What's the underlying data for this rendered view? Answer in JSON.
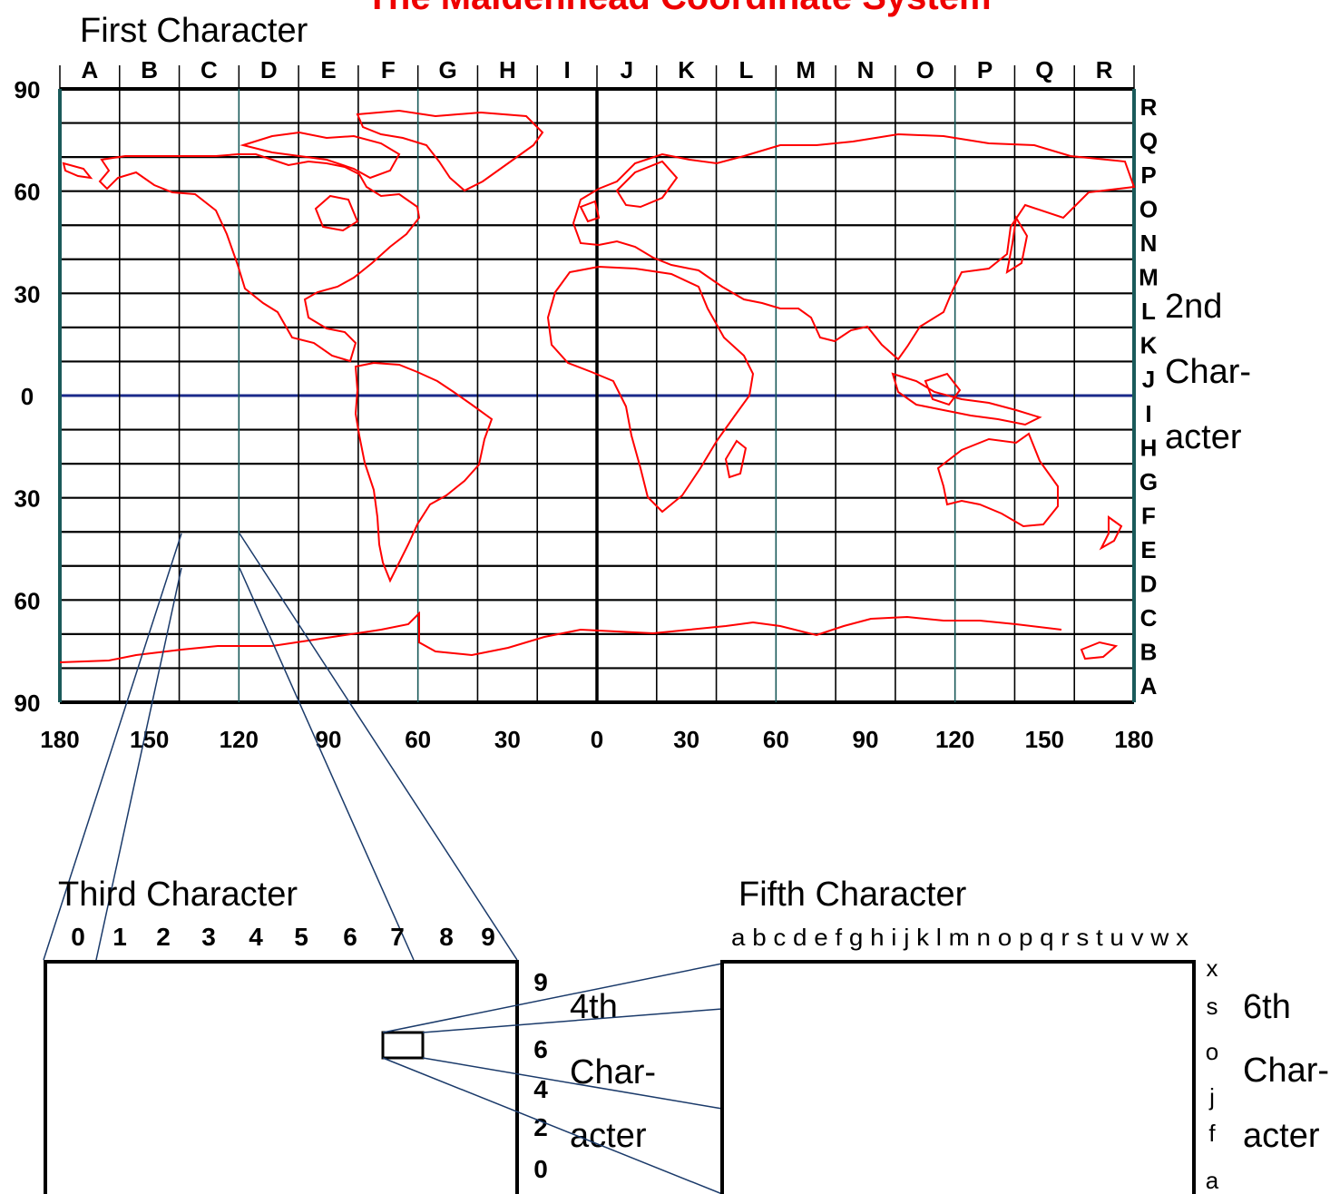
{
  "title": "The Maidenhead Coordinate System",
  "colors": {
    "title": "#ee0000",
    "coast": "#ff0000",
    "grid": "#000000",
    "axis": "#000000",
    "equator": "#1a2a8a",
    "tropic": "#3aa0a0",
    "zoom_line": "#1a3a6a"
  },
  "labels": {
    "first_character": "First Character",
    "second_character": [
      "2nd",
      "Char-",
      "acter"
    ],
    "third_character": "Third Character",
    "fourth_character": [
      "4th",
      "Char-",
      "acter"
    ],
    "fifth_character": "Fifth Character",
    "sixth_character": [
      "6th",
      "Char-",
      "acter"
    ]
  },
  "world_map": {
    "field_letters_lon": [
      "A",
      "B",
      "C",
      "D",
      "E",
      "F",
      "G",
      "H",
      "I",
      "J",
      "K",
      "L",
      "M",
      "N",
      "O",
      "P",
      "Q",
      "R"
    ],
    "field_letters_lat": [
      "R",
      "Q",
      "P",
      "O",
      "N",
      "M",
      "L",
      "K",
      "J",
      "I",
      "H",
      "G",
      "F",
      "E",
      "D",
      "C",
      "B",
      "A"
    ],
    "lat_labels": [
      "90",
      "60",
      "30",
      "0",
      "30",
      "60",
      "90"
    ],
    "lon_labels": [
      "180",
      "150",
      "120",
      "90",
      "60",
      "30",
      "0",
      "30",
      "60",
      "90",
      "120",
      "150",
      "180"
    ]
  },
  "square_box": {
    "digits_lon": [
      "0",
      "1",
      "2",
      "3",
      "4",
      "5",
      "6",
      "7",
      "8",
      "9"
    ],
    "digits_lat": [
      "9",
      "6",
      "4",
      "2",
      "0"
    ]
  },
  "subsquare_box": {
    "letters_lon": "a b c d e f g h i j k l m n o p q r s t u v w x",
    "letters_lat": [
      "x",
      "s",
      "o",
      "j",
      "f",
      "a"
    ]
  }
}
